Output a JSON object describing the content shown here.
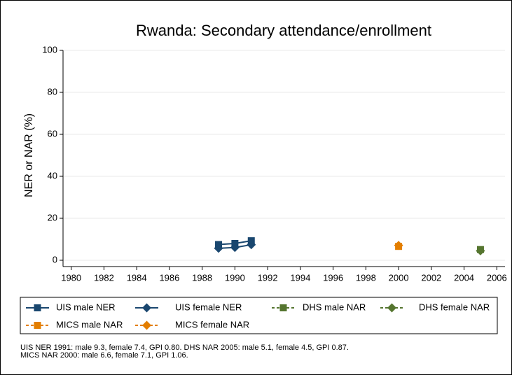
{
  "chart_data": {
    "type": "line",
    "title": "Rwanda: Secondary attendance/enrollment",
    "ylabel": "NER or NAR (%)",
    "x": [
      1989,
      1990,
      1991,
      2000,
      2005
    ],
    "series": [
      {
        "name": "UIS male NER",
        "color": "#1a476f",
        "marker": "square",
        "dashed": false,
        "values": [
          7.5,
          8,
          9.3,
          null,
          null
        ]
      },
      {
        "name": "UIS female NER",
        "color": "#1a476f",
        "marker": "diamond",
        "dashed": false,
        "values": [
          5.7,
          6.1,
          7.4,
          null,
          null
        ]
      },
      {
        "name": "DHS male NAR",
        "color": "#55752f",
        "marker": "square",
        "dashed": true,
        "values": [
          null,
          null,
          null,
          null,
          5.1
        ]
      },
      {
        "name": "DHS female NAR",
        "color": "#55752f",
        "marker": "diamond",
        "dashed": true,
        "values": [
          null,
          null,
          null,
          null,
          4.5
        ]
      },
      {
        "name": "MICS male NAR",
        "color": "#e37e00",
        "marker": "square",
        "dashed": true,
        "values": [
          null,
          null,
          null,
          6.6,
          null
        ]
      },
      {
        "name": "MICS female NAR",
        "color": "#e37e00",
        "marker": "diamond",
        "dashed": true,
        "values": [
          null,
          null,
          null,
          7.1,
          null
        ]
      }
    ],
    "xlim": [
      1979.5,
      2006.5
    ],
    "xticks": [
      1980,
      1982,
      1984,
      1986,
      1988,
      1990,
      1992,
      1994,
      1996,
      1998,
      2000,
      2002,
      2004,
      2006
    ],
    "ylim": [
      -3,
      100
    ],
    "yticks": [
      0,
      20,
      40,
      60,
      80,
      100
    ],
    "grid": true,
    "notes": [
      "UIS NER 1991: male 9.3, female 7.4, GPI 0.80. DHS NAR 2005: male 5.1, female 4.5, GPI 0.87.",
      "MICS NAR 2000: male 6.6, female 7.1, GPI 1.06."
    ]
  }
}
